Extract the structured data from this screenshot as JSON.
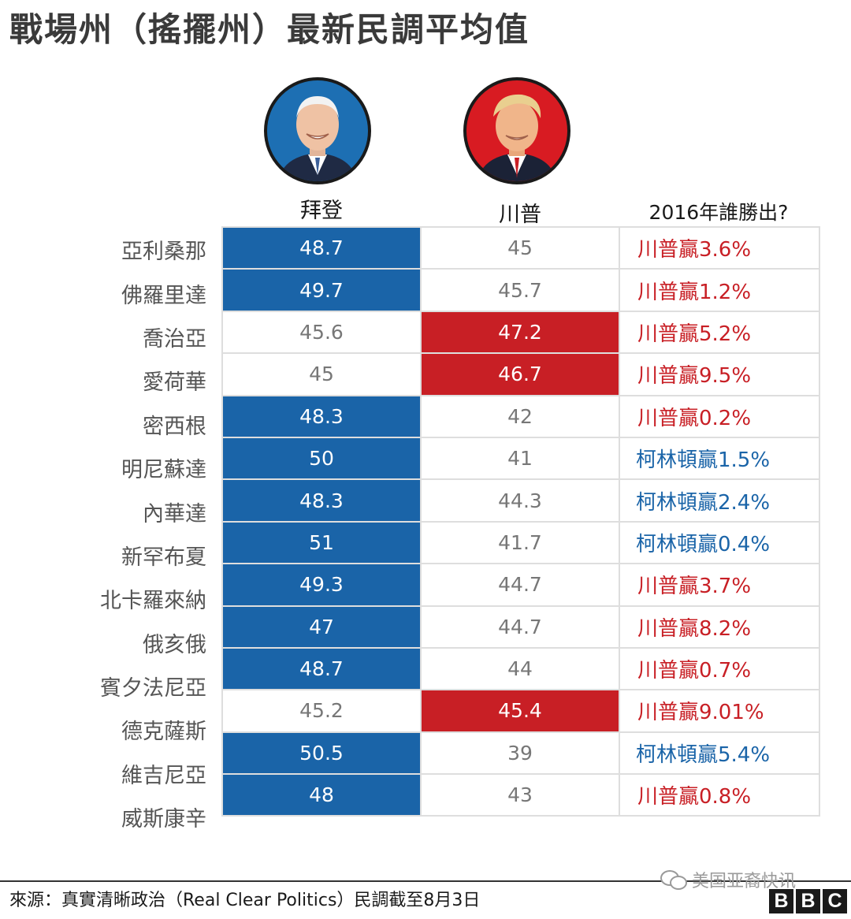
{
  "title": "戰場州（搖擺州）最新民調平均值",
  "columns": {
    "biden": "拜登",
    "trump": "川普",
    "result_2016": "2016年誰勝出?"
  },
  "colors": {
    "biden_lead": "#1a64a8",
    "trump_lead": "#c81f25",
    "trump_win_text": "#c81f25",
    "clinton_win_text": "#1a64a8"
  },
  "chart_data": {
    "type": "table",
    "title": "戰場州（搖擺州）最新民調平均值",
    "columns": [
      "拜登",
      "川普",
      "2016年誰勝出?"
    ],
    "rows": [
      {
        "state": "亞利桑那",
        "biden": "48.7",
        "trump": "45",
        "result": "川普贏3.6%",
        "leader": "biden",
        "winner_2016": "trump"
      },
      {
        "state": "佛羅里達",
        "biden": "49.7",
        "trump": "45.7",
        "result": "川普贏1.2%",
        "leader": "biden",
        "winner_2016": "trump"
      },
      {
        "state": "喬治亞",
        "biden": "45.6",
        "trump": "47.2",
        "result": "川普贏5.2%",
        "leader": "trump",
        "winner_2016": "trump"
      },
      {
        "state": "愛荷華",
        "biden": "45",
        "trump": "46.7",
        "result": "川普贏9.5%",
        "leader": "trump",
        "winner_2016": "trump"
      },
      {
        "state": "密西根",
        "biden": "48.3",
        "trump": "42",
        "result": "川普贏0.2%",
        "leader": "biden",
        "winner_2016": "trump"
      },
      {
        "state": "明尼蘇達",
        "biden": "50",
        "trump": "41",
        "result": "柯林頓贏1.5%",
        "leader": "biden",
        "winner_2016": "clinton"
      },
      {
        "state": "內華達",
        "biden": "48.3",
        "trump": "44.3",
        "result": "柯林頓贏2.4%",
        "leader": "biden",
        "winner_2016": "clinton"
      },
      {
        "state": "新罕布夏",
        "biden": "51",
        "trump": "41.7",
        "result": "柯林頓贏0.4%",
        "leader": "biden",
        "winner_2016": "clinton"
      },
      {
        "state": "北卡羅來納",
        "biden": "49.3",
        "trump": "44.7",
        "result": "川普贏3.7%",
        "leader": "biden",
        "winner_2016": "trump"
      },
      {
        "state": "俄亥俄",
        "biden": "47",
        "trump": "44.7",
        "result": "川普贏8.2%",
        "leader": "biden",
        "winner_2016": "trump"
      },
      {
        "state": "賓夕法尼亞",
        "biden": "48.7",
        "trump": "44",
        "result": "川普贏0.7%",
        "leader": "biden",
        "winner_2016": "trump"
      },
      {
        "state": "德克薩斯",
        "biden": "45.2",
        "trump": "45.4",
        "result": "川普贏9.01%",
        "leader": "trump",
        "winner_2016": "trump"
      },
      {
        "state": "維吉尼亞",
        "biden": "50.5",
        "trump": "39",
        "result": "柯林頓贏5.4%",
        "leader": "biden",
        "winner_2016": "clinton"
      },
      {
        "state": "威斯康辛",
        "biden": "48",
        "trump": "43",
        "result": "川普贏0.8%",
        "leader": "biden",
        "winner_2016": "trump"
      }
    ]
  },
  "footer": {
    "source": "來源：真實清晰政治（Real Clear Politics）民調截至8月3日",
    "watermark": "美国亚裔快讯",
    "logo": [
      "B",
      "B",
      "C"
    ]
  }
}
